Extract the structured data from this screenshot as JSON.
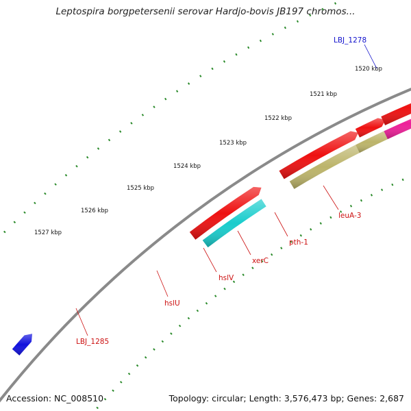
{
  "title": "Leptospira borgpetersenii serovar Hardjo-bovis JB197 chromos...",
  "footer": {
    "accession": "Accession: NC_008510",
    "summary": "Topology: circular; Length: 3,576,473 bp; Genes: 2,687"
  },
  "colors": {
    "backbone": "#8a8a8a",
    "tick_dots": "#2a8a2a",
    "forward_label": "#1010cc",
    "reverse_label": "#cc1010"
  },
  "chart_data": {
    "type": "circular-genome-map",
    "kbp_ticks": [
      "1520 kbp",
      "1521 kbp",
      "1522 kbp",
      "1523 kbp",
      "1524 kbp",
      "1525 kbp",
      "1526 kbp",
      "1527 kbp"
    ],
    "outer_features": [
      {
        "label": "LBJ_1278",
        "color": "#1010dd",
        "strand": "forward"
      }
    ],
    "cds_track": [
      {
        "color": "#ee1111"
      },
      {
        "color": "#ee1111"
      },
      {
        "color": "#ee1111"
      },
      {
        "color": "#ee1111"
      },
      {
        "color": "#ee1111"
      },
      {
        "color": "#ee1111"
      },
      {
        "color": "#ee1111"
      },
      {
        "color": "#ee1111"
      }
    ],
    "annotated_genes": [
      {
        "label": "LBJ_1285",
        "color": "#19cccc"
      },
      {
        "label": "hslU",
        "color": "#bcb46a"
      },
      {
        "label": "hslV",
        "color": "#bcb46a"
      },
      {
        "label": "xerC",
        "color": "#ee1f99"
      },
      {
        "label": "pth-1",
        "color": "#f08080"
      },
      {
        "label": "leuA-3",
        "color": "#4a7ab4"
      },
      {
        "label": "",
        "color": "#ee1f99"
      }
    ]
  }
}
